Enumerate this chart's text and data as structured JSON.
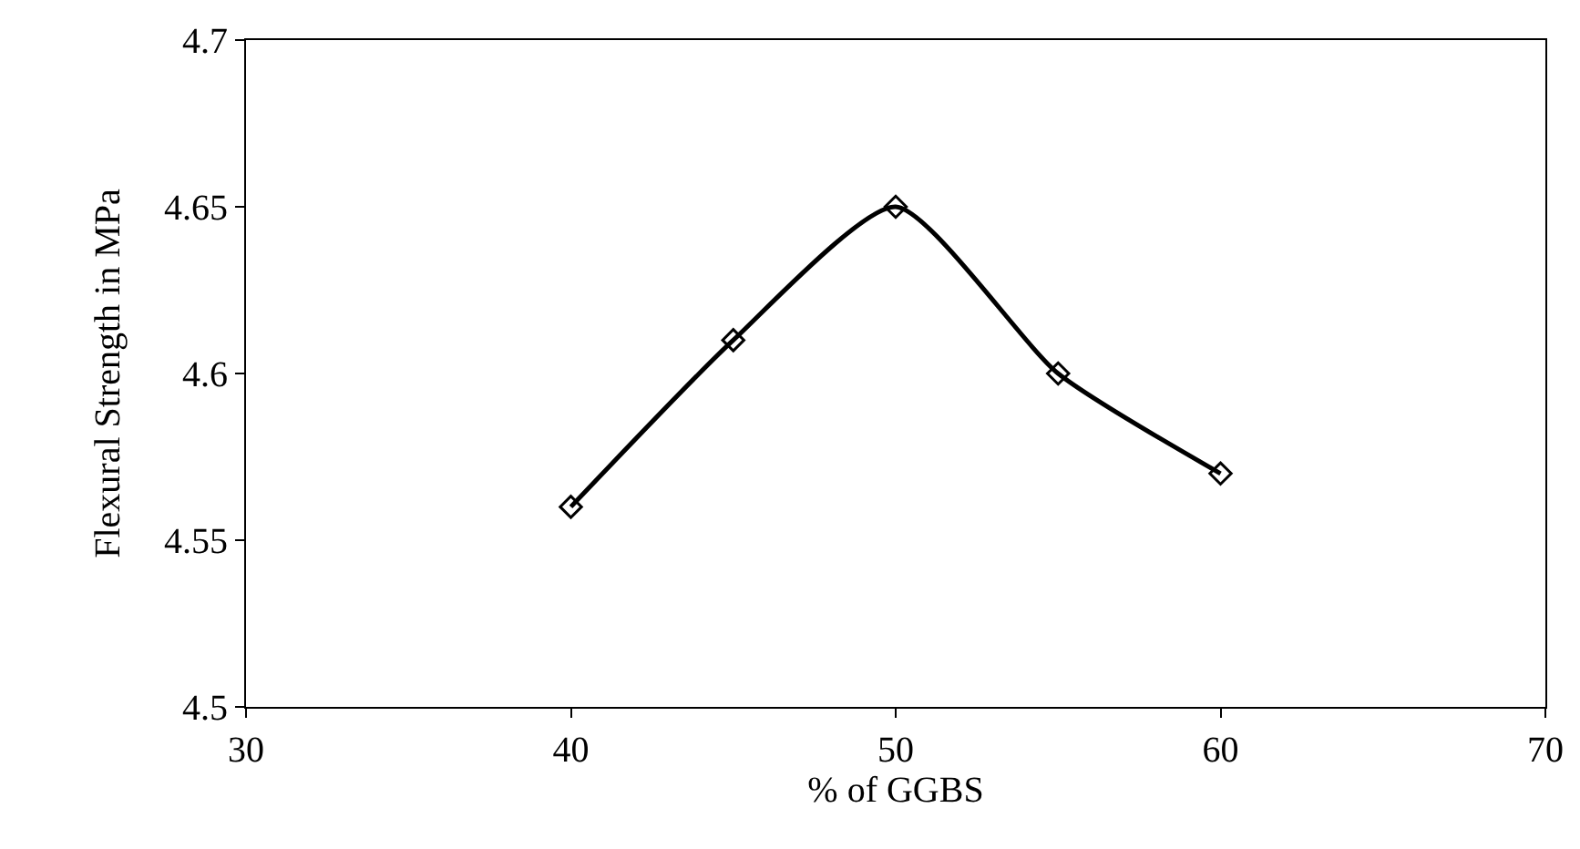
{
  "chart_data": {
    "type": "line",
    "xlabel": "% of GGBS",
    "ylabel": "Flexural Strength in MPa",
    "x": [
      40,
      45,
      50,
      55,
      60
    ],
    "series": [
      {
        "color": "#000000",
        "values": [
          4.56,
          4.61,
          4.65,
          4.6,
          4.57
        ]
      }
    ],
    "xlim": [
      30,
      70
    ],
    "xticks": [
      30,
      40,
      50,
      60,
      70
    ],
    "ylim": [
      4.5,
      4.7
    ],
    "yticks": [
      4.5,
      4.55,
      4.6,
      4.65,
      4.7
    ],
    "grid": false,
    "marker": "diamond",
    "line_style": "solid"
  }
}
